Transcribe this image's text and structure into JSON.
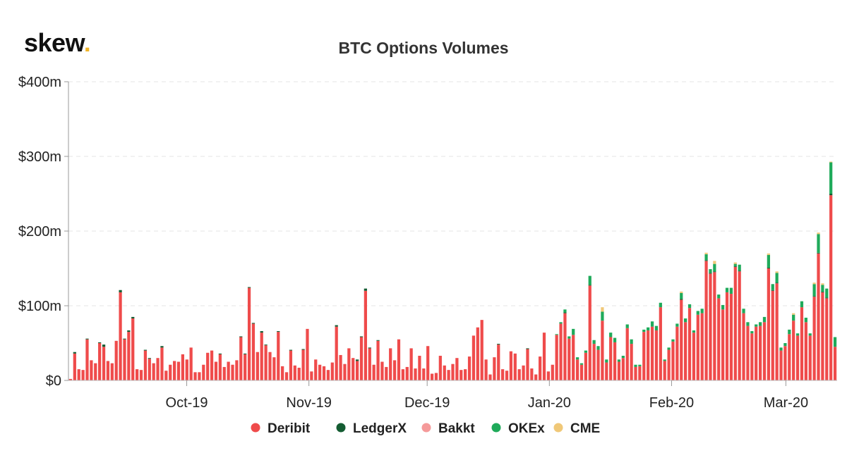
{
  "brand": {
    "name": "skew",
    "dot": "."
  },
  "chart_data": {
    "type": "bar",
    "stacked": true,
    "title": "BTC Options Volumes",
    "grid": true,
    "legend_position": "bottom",
    "y_ticks": [
      "$0",
      "$100m",
      "$200m",
      "$300m",
      "$400m"
    ],
    "ylim": [
      0,
      400
    ],
    "y_unit": "$m",
    "x_tick_labels": [
      "Oct-19",
      "Nov-19",
      "Dec-19",
      "Jan-20",
      "Feb-20",
      "Mar-20"
    ],
    "x_tick_dates": [
      "2019-10-01",
      "2019-11-01",
      "2019-12-01",
      "2020-01-01",
      "2020-02-01",
      "2020-03-01"
    ],
    "x_start": "2019-09-01",
    "x_end": "2020-03-14",
    "series_colors": {
      "Deribit": "#ef4b4b",
      "LedgerX": "#145c32",
      "Bakkt": "#f59a9a",
      "OKEx": "#1faa5a",
      "CME": "#f0c878"
    },
    "legend": [
      "Deribit",
      "LedgerX",
      "Bakkt",
      "OKEx",
      "CME"
    ],
    "series": [
      {
        "name": "Deribit",
        "values": [
          2,
          36,
          15,
          14,
          55,
          27,
          23,
          50,
          45,
          26,
          23,
          53,
          118,
          55,
          65,
          83,
          15,
          14,
          40,
          29,
          23,
          30,
          44,
          13,
          21,
          26,
          25,
          35,
          28,
          44,
          11,
          11,
          21,
          37,
          40,
          25,
          35,
          18,
          25,
          21,
          27,
          58,
          35,
          124,
          76,
          38,
          64,
          47,
          38,
          31,
          65,
          19,
          11,
          40,
          20,
          17,
          41,
          69,
          12,
          28,
          21,
          19,
          14,
          24,
          72,
          34,
          22,
          43,
          30,
          26,
          58,
          120,
          43,
          21,
          53,
          25,
          18,
          43,
          27,
          55,
          15,
          18,
          43,
          16,
          33,
          16,
          46,
          9,
          10,
          33,
          20,
          14,
          22,
          30,
          14,
          15,
          32,
          60,
          71,
          81,
          28,
          8,
          31,
          48,
          15,
          13,
          39,
          36,
          15,
          20,
          42,
          16,
          8,
          32,
          64,
          12,
          21,
          61,
          76,
          90,
          56,
          61,
          28,
          21,
          37,
          127,
          49,
          41,
          80,
          24,
          58,
          51,
          25,
          30,
          70,
          49,
          18,
          19,
          65,
          67,
          72,
          67,
          98,
          26,
          41,
          52,
          72,
          108,
          78,
          97,
          64,
          88,
          90,
          160,
          143,
          145,
          110,
          95,
          118,
          116,
          152,
          146,
          90,
          73,
          63,
          72,
          73,
          78,
          150,
          120,
          130,
          40,
          46,
          62,
          80,
          60,
          98,
          78,
          60,
          112,
          170,
          118,
          110,
          248,
          45
        ]
      },
      {
        "name": "LedgerX",
        "values": [
          0,
          2,
          0,
          0,
          1,
          0,
          0,
          1,
          3,
          0,
          0,
          0,
          3,
          1,
          2,
          2,
          0,
          0,
          1,
          1,
          0,
          0,
          2,
          0,
          0,
          0,
          0,
          0,
          0,
          0,
          0,
          0,
          0,
          0,
          0,
          0,
          1,
          0,
          0,
          0,
          0,
          1,
          1,
          1,
          1,
          0,
          2,
          1,
          0,
          0,
          1,
          0,
          0,
          1,
          0,
          0,
          1,
          0,
          0,
          0,
          0,
          0,
          0,
          0,
          2,
          0,
          0,
          0,
          0,
          2,
          1,
          3,
          1,
          0,
          1,
          0,
          0,
          0,
          0,
          0,
          0,
          0,
          0,
          0,
          0,
          0,
          0,
          0,
          0,
          0,
          0,
          0,
          0,
          0,
          0,
          0,
          0,
          0,
          0,
          0,
          0,
          0,
          0,
          1,
          0,
          0,
          0,
          0,
          0,
          0,
          1,
          0,
          0,
          0,
          0,
          0,
          0,
          0,
          0,
          1,
          0,
          0,
          0,
          0,
          0,
          1,
          0,
          0,
          0,
          0,
          0,
          0,
          0,
          0,
          0,
          0,
          0,
          0,
          0,
          0,
          0,
          0,
          0,
          0,
          0,
          0,
          0,
          1,
          0,
          0,
          0,
          0,
          0,
          1,
          1,
          1,
          0,
          0,
          0,
          0,
          1,
          1,
          0,
          0,
          0,
          0,
          0,
          0,
          1,
          1,
          1,
          0,
          0,
          0,
          0,
          0,
          0,
          0,
          0,
          1,
          1,
          1,
          1,
          2,
          0
        ]
      },
      {
        "name": "Bakkt",
        "values": [
          0,
          0,
          0,
          0,
          0,
          0,
          0,
          0,
          0,
          0,
          0,
          0,
          0,
          0,
          0,
          0,
          0,
          0,
          0,
          0,
          0,
          0,
          0,
          0,
          0,
          0,
          0,
          0,
          0,
          0,
          0,
          0,
          0,
          0,
          0,
          0,
          0,
          0,
          0,
          0,
          0,
          0,
          0,
          0,
          0,
          0,
          0,
          0,
          0,
          0,
          0,
          0,
          0,
          0,
          0,
          0,
          0,
          0,
          0,
          0,
          0,
          0,
          0,
          0,
          0,
          0,
          0,
          0,
          0,
          0,
          0,
          0,
          0,
          0,
          0,
          0,
          0,
          0,
          0,
          0,
          0,
          0,
          0,
          0,
          0,
          0,
          0,
          0,
          0,
          0,
          0,
          0,
          0,
          0,
          0,
          0,
          0,
          0,
          0,
          0,
          0,
          0,
          0,
          0,
          0,
          0,
          0,
          0,
          0,
          0,
          0,
          0,
          0,
          0,
          0,
          0,
          0,
          0,
          0,
          0,
          0,
          0,
          0,
          0,
          0,
          0,
          0,
          0,
          0,
          0,
          0,
          0,
          0,
          0,
          0,
          0,
          0,
          0,
          0,
          0,
          0,
          0,
          0,
          0,
          0,
          0,
          0,
          0,
          0,
          0,
          0,
          0,
          0,
          0,
          0,
          0,
          0,
          0,
          0,
          0,
          0,
          0,
          0,
          0,
          0,
          0,
          0,
          0,
          0,
          0,
          0,
          0,
          0,
          0,
          0,
          0,
          0,
          0,
          0,
          0,
          0,
          0,
          0,
          0,
          0
        ]
      },
      {
        "name": "OKEx",
        "values": [
          0,
          0,
          0,
          0,
          0,
          0,
          0,
          0,
          0,
          0,
          0,
          0,
          0,
          0,
          0,
          0,
          0,
          0,
          0,
          0,
          0,
          0,
          0,
          0,
          0,
          0,
          0,
          0,
          0,
          0,
          0,
          0,
          0,
          0,
          0,
          0,
          0,
          0,
          0,
          0,
          0,
          0,
          0,
          0,
          0,
          0,
          0,
          0,
          0,
          0,
          0,
          0,
          0,
          0,
          0,
          0,
          0,
          0,
          0,
          0,
          0,
          0,
          0,
          0,
          0,
          0,
          0,
          0,
          0,
          0,
          0,
          0,
          0,
          0,
          0,
          0,
          0,
          0,
          0,
          0,
          0,
          0,
          0,
          0,
          0,
          0,
          0,
          0,
          0,
          0,
          0,
          0,
          0,
          0,
          0,
          0,
          0,
          0,
          0,
          0,
          0,
          0,
          0,
          0,
          0,
          0,
          0,
          0,
          0,
          0,
          0,
          0,
          0,
          0,
          0,
          0,
          0,
          1,
          2,
          4,
          3,
          8,
          3,
          2,
          3,
          12,
          5,
          5,
          12,
          4,
          6,
          6,
          3,
          3,
          5,
          6,
          3,
          2,
          3,
          4,
          7,
          6,
          6,
          2,
          3,
          3,
          4,
          8,
          5,
          5,
          3,
          5,
          6,
          8,
          5,
          10,
          5,
          6,
          6,
          8,
          3,
          8,
          6,
          5,
          3,
          3,
          5,
          7,
          17,
          8,
          13,
          4,
          4,
          6,
          8,
          3,
          8,
          6,
          3,
          16,
          25,
          9,
          12,
          42,
          13
        ]
      },
      {
        "name": "CME",
        "values": [
          0,
          0,
          0,
          0,
          0,
          0,
          0,
          0,
          0,
          0,
          0,
          0,
          0,
          0,
          0,
          0,
          0,
          0,
          0,
          0,
          0,
          0,
          0,
          0,
          0,
          0,
          0,
          0,
          0,
          0,
          0,
          0,
          0,
          0,
          0,
          0,
          0,
          0,
          0,
          0,
          0,
          0,
          0,
          0,
          0,
          0,
          0,
          0,
          0,
          0,
          0,
          0,
          0,
          0,
          0,
          0,
          0,
          0,
          0,
          0,
          0,
          0,
          0,
          0,
          0,
          0,
          0,
          0,
          0,
          0,
          0,
          0,
          0,
          0,
          0,
          0,
          0,
          0,
          0,
          0,
          0,
          0,
          0,
          0,
          0,
          0,
          0,
          0,
          0,
          0,
          0,
          0,
          0,
          0,
          0,
          0,
          0,
          0,
          0,
          0,
          0,
          0,
          0,
          0,
          0,
          0,
          0,
          0,
          0,
          0,
          0,
          0,
          0,
          0,
          0,
          0,
          0,
          0,
          0,
          0,
          0,
          0,
          0,
          0,
          0,
          0,
          0,
          0,
          6,
          0,
          0,
          0,
          0,
          0,
          0,
          0,
          0,
          0,
          0,
          0,
          0,
          0,
          0,
          0,
          0,
          0,
          0,
          2,
          0,
          0,
          0,
          0,
          0,
          2,
          0,
          4,
          0,
          0,
          0,
          0,
          2,
          0,
          0,
          0,
          0,
          0,
          0,
          0,
          2,
          0,
          2,
          0,
          0,
          0,
          2,
          0,
          0,
          0,
          0,
          2,
          2,
          2,
          0,
          1,
          0
        ]
      }
    ]
  }
}
